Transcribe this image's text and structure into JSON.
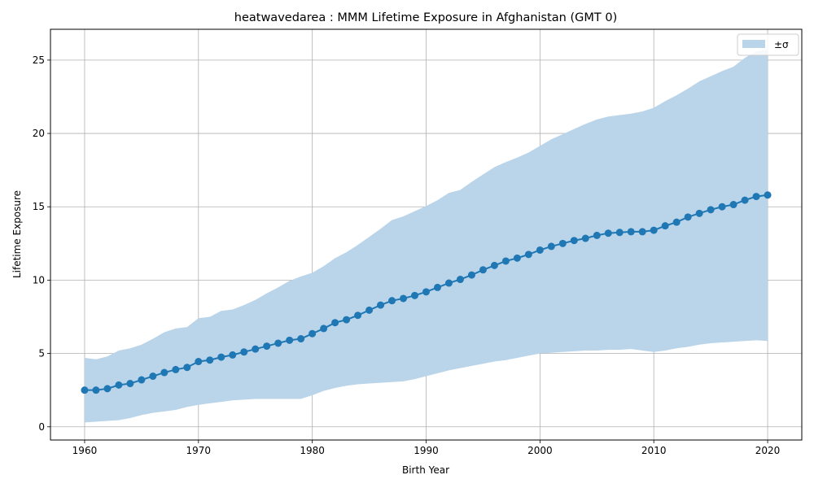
{
  "chart_data": {
    "type": "line",
    "title": "heatwavedarea : MMM Lifetime Exposure in Afghanistan (GMT 0)",
    "xlabel": "Birth Year",
    "ylabel": "Lifetime Exposure",
    "xlim": [
      1957,
      2023
    ],
    "ylim": [
      -0.9,
      27.1
    ],
    "xticks": [
      1960,
      1970,
      1980,
      1990,
      2000,
      2010,
      2020
    ],
    "yticks": [
      0,
      5,
      10,
      15,
      20,
      25
    ],
    "grid": true,
    "legend_position": "top-right",
    "legend_label": "±σ",
    "line_color": "#1f77b4",
    "band_color": "#bad5ea",
    "x": [
      1960,
      1961,
      1962,
      1963,
      1964,
      1965,
      1966,
      1967,
      1968,
      1969,
      1970,
      1971,
      1972,
      1973,
      1974,
      1975,
      1976,
      1977,
      1978,
      1979,
      1980,
      1981,
      1982,
      1983,
      1984,
      1985,
      1986,
      1987,
      1988,
      1989,
      1990,
      1991,
      1992,
      1993,
      1994,
      1995,
      1996,
      1997,
      1998,
      1999,
      2000,
      2001,
      2002,
      2003,
      2004,
      2005,
      2006,
      2007,
      2008,
      2009,
      2010,
      2011,
      2012,
      2013,
      2014,
      2015,
      2016,
      2017,
      2018,
      2019,
      2020
    ],
    "mean": [
      2.5,
      2.5,
      2.6,
      2.85,
      2.95,
      3.2,
      3.45,
      3.7,
      3.9,
      4.05,
      4.45,
      4.55,
      4.75,
      4.9,
      5.1,
      5.3,
      5.5,
      5.7,
      5.9,
      6.0,
      6.35,
      6.7,
      7.1,
      7.3,
      7.6,
      7.95,
      8.3,
      8.6,
      8.75,
      8.95,
      9.2,
      9.5,
      9.8,
      10.05,
      10.35,
      10.7,
      11.0,
      11.3,
      11.5,
      11.75,
      12.05,
      12.3,
      12.5,
      12.7,
      12.85,
      13.05,
      13.2,
      13.25,
      13.3,
      13.3,
      13.4,
      13.7,
      13.95,
      14.3,
      14.55,
      14.8,
      15.0,
      15.15,
      15.45,
      15.7,
      15.8
    ],
    "upper": [
      4.7,
      4.6,
      4.8,
      5.2,
      5.35,
      5.6,
      6.0,
      6.45,
      6.7,
      6.8,
      7.4,
      7.5,
      7.9,
      8.0,
      8.3,
      8.65,
      9.1,
      9.5,
      9.95,
      10.25,
      10.5,
      10.95,
      11.5,
      11.9,
      12.4,
      12.95,
      13.5,
      14.1,
      14.35,
      14.7,
      15.05,
      15.45,
      15.95,
      16.15,
      16.7,
      17.2,
      17.7,
      18.05,
      18.35,
      18.7,
      19.15,
      19.6,
      19.95,
      20.3,
      20.65,
      20.95,
      21.15,
      21.25,
      21.35,
      21.5,
      21.75,
      22.2,
      22.6,
      23.05,
      23.55,
      23.9,
      24.25,
      24.55,
      25.15,
      25.6,
      25.7
    ],
    "lower": [
      0.3,
      0.35,
      0.4,
      0.45,
      0.6,
      0.8,
      0.95,
      1.05,
      1.15,
      1.35,
      1.5,
      1.6,
      1.7,
      1.8,
      1.85,
      1.9,
      1.9,
      1.9,
      1.9,
      1.9,
      2.15,
      2.45,
      2.65,
      2.8,
      2.9,
      2.95,
      3.0,
      3.05,
      3.1,
      3.25,
      3.45,
      3.65,
      3.85,
      4.0,
      4.15,
      4.3,
      4.45,
      4.55,
      4.7,
      4.85,
      5.0,
      5.05,
      5.1,
      5.15,
      5.2,
      5.2,
      5.25,
      5.25,
      5.3,
      5.2,
      5.1,
      5.2,
      5.35,
      5.45,
      5.6,
      5.7,
      5.75,
      5.8,
      5.85,
      5.9,
      5.85
    ]
  }
}
